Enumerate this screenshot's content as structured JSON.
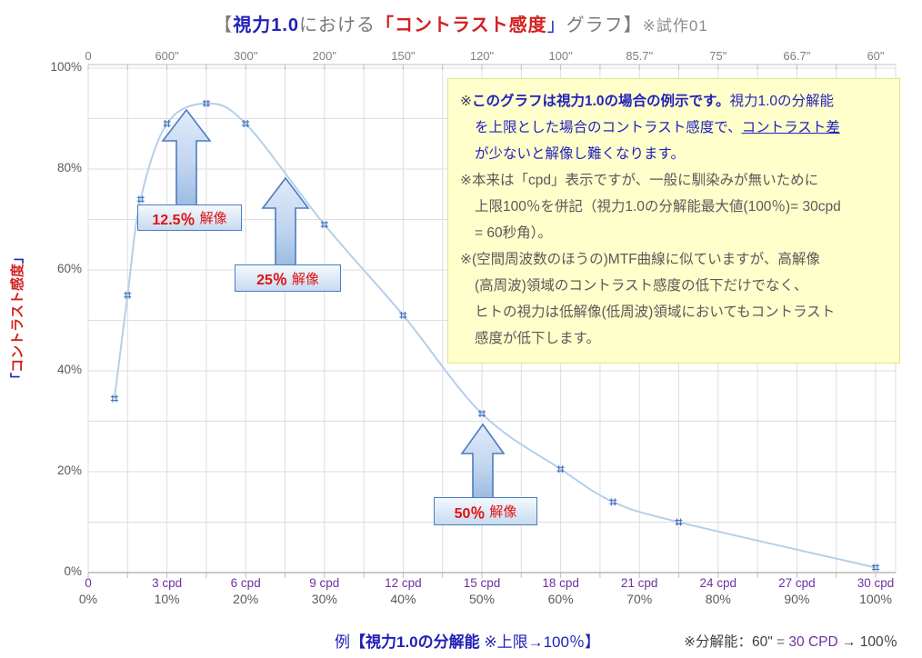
{
  "title": {
    "t1": "【",
    "t2": "視力1.0",
    "t3": "における",
    "t4": "「コントラスト感度",
    "t5": "」",
    "t6": "グラフ】",
    "t7": "※試作01"
  },
  "y_axis_title": {
    "open": "「",
    "text": "コントラスト感度",
    "close": "」"
  },
  "note_box": {
    "lines": [
      {
        "ind": 0,
        "segs": [
          {
            "t": "※",
            "s": "dark"
          },
          {
            "t": "このグラフは視力1.0の場合の例示です。",
            "s": "blueb"
          },
          {
            "t": "視力1.0の分解能",
            "s": "blue"
          }
        ]
      },
      {
        "ind": 1,
        "segs": [
          {
            "t": "を上限とした場合のコントラスト感度で、",
            "s": "blue"
          },
          {
            "t": "コントラスト差",
            "s": "blueu"
          }
        ]
      },
      {
        "ind": 1,
        "segs": [
          {
            "t": "が少ないと解像し難くなります。",
            "s": "blue"
          }
        ]
      },
      {
        "ind": 0,
        "segs": [
          {
            "t": "※本来は「cpd」表示ですが、一般に馴染みが無いために",
            "s": "gray"
          }
        ]
      },
      {
        "ind": 1,
        "segs": [
          {
            "t": "上限100％を併記（視力1.0の分解能最大値(100％)= 30cpd",
            "s": "gray"
          }
        ]
      },
      {
        "ind": 1,
        "segs": [
          {
            "t": "= 60秒角）。",
            "s": "gray"
          }
        ]
      },
      {
        "ind": 0,
        "segs": [
          {
            "t": "※(空間周波数のほうの)MTF曲線に似ていますが、高解像",
            "s": "gray"
          }
        ]
      },
      {
        "ind": 1,
        "segs": [
          {
            "t": "(高周波)領域のコントラスト感度の低下だけでなく、",
            "s": "gray"
          }
        ]
      },
      {
        "ind": 1,
        "segs": [
          {
            "t": "ヒトの視力は低解像(低周波)領域においてもコントラスト",
            "s": "gray"
          }
        ]
      },
      {
        "ind": 1,
        "segs": [
          {
            "t": "感度が低下します。",
            "s": "gray"
          }
        ]
      }
    ]
  },
  "callouts": [
    {
      "num": "12.5％",
      "word": "解像"
    },
    {
      "num": "25％",
      "word": "解像"
    },
    {
      "num": "50％",
      "word": "解像"
    }
  ],
  "footer": {
    "left1": "例",
    "left2": "【視力1.0の分解能",
    "left3": " ※上限→100％】",
    "right1": "※分解能：60\"",
    "right2": " = ",
    "right3": "30 CPD",
    "right4": " → ",
    "right5": "100％"
  },
  "chart_data": {
    "type": "line",
    "title": "【視力1.0における「コントラスト感度」グラフ】※試作01",
    "ylabel": "「コントラスト感度」",
    "x_ticks_arcsec": [
      "0",
      "600\"",
      "300\"",
      "200\"",
      "150\"",
      "120\"",
      "100\"",
      "85.7\"",
      "75\"",
      "66.7\"",
      "60\""
    ],
    "x_ticks_cpd": [
      "0",
      "3 cpd",
      "6 cpd",
      "9 cpd",
      "12 cpd",
      "15 cpd",
      "18 cpd",
      "21 cpd",
      "24 cpd",
      "27 cpd",
      "30 cpd"
    ],
    "x_ticks_pct": [
      "0%",
      "10%",
      "20%",
      "30%",
      "40%",
      "50%",
      "60%",
      "70%",
      "80%",
      "90%",
      "100%"
    ],
    "y_ticks_top_to_bottom": [
      "100%",
      "80%",
      "60%",
      "40%",
      "20%",
      "0%"
    ],
    "xlim": [
      0,
      30.75
    ],
    "ylim": [
      0,
      100
    ],
    "grid": true,
    "annotations": [
      "12.5％ 解像",
      "25％ 解像",
      "50％ 解像"
    ],
    "series": [
      {
        "name": "コントラスト感度",
        "x_cpd": [
          1,
          1.5,
          2,
          3,
          4.5,
          6,
          9,
          12,
          15,
          18,
          20,
          22.5,
          30
        ],
        "x_arcsec": [
          1800,
          1200,
          900,
          600,
          400,
          300,
          200,
          150,
          120,
          100,
          90,
          80,
          60
        ],
        "y_pct": [
          34.5,
          55,
          74,
          89,
          93,
          89,
          69,
          51,
          31.5,
          20.5,
          14,
          10,
          1
        ]
      }
    ],
    "line_color": "#b5cfe9",
    "marker_color": "#4472c4",
    "marker": "hash"
  }
}
